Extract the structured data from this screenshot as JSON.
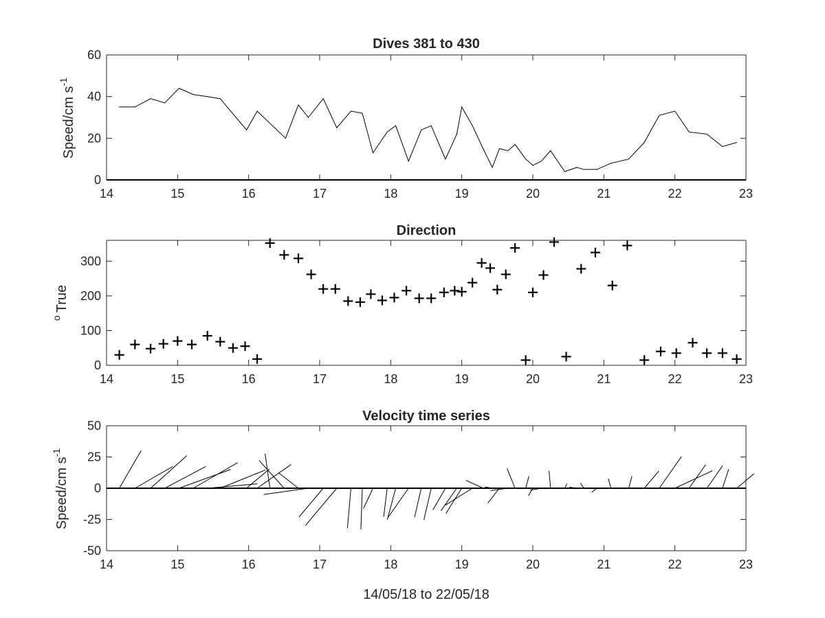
{
  "chart_data": [
    {
      "type": "line",
      "title": "Dives 381 to 430",
      "ylabel": "Speed/cm s",
      "ylabel_sup": "-1",
      "xlim": [
        14,
        23
      ],
      "ylim": [
        0,
        60
      ],
      "xticks": [
        14,
        15,
        16,
        17,
        18,
        19,
        20,
        21,
        22,
        23
      ],
      "yticks": [
        0,
        20,
        40,
        60
      ],
      "grid": false,
      "x": [
        14.18,
        14.4,
        14.62,
        14.82,
        15.02,
        15.22,
        15.42,
        15.6,
        15.97,
        16.12,
        16.52,
        16.7,
        16.84,
        17.05,
        17.24,
        17.44,
        17.6,
        17.75,
        17.95,
        18.07,
        18.25,
        18.43,
        18.57,
        18.77,
        18.93,
        19.0,
        19.15,
        19.3,
        19.43,
        19.53,
        19.65,
        19.75,
        19.9,
        20.0,
        20.12,
        20.25,
        20.45,
        20.62,
        20.72,
        20.9,
        21.1,
        21.35,
        21.57,
        21.78,
        22.0,
        22.2,
        22.45,
        22.67,
        22.87
      ],
      "values": [
        35,
        35,
        39,
        37,
        44,
        41,
        40,
        39,
        24,
        33,
        20,
        36,
        30,
        39,
        25,
        33,
        32,
        13,
        23,
        26,
        9,
        24,
        26,
        10,
        22,
        35,
        26,
        15,
        6,
        15,
        14,
        17,
        10,
        7,
        9,
        14,
        4,
        6,
        5,
        5,
        8,
        10,
        18,
        31,
        33,
        23,
        22,
        16,
        18
      ]
    },
    {
      "type": "scatter",
      "title": "Direction",
      "ylabel": "True",
      "ylabel_sup": "o",
      "xlim": [
        14,
        23
      ],
      "ylim": [
        0,
        360
      ],
      "xticks": [
        14,
        15,
        16,
        17,
        18,
        19,
        20,
        21,
        22,
        23
      ],
      "yticks": [
        0,
        100,
        200,
        300
      ],
      "grid": false,
      "x": [
        14.18,
        14.4,
        14.62,
        14.8,
        15.0,
        15.2,
        15.42,
        15.6,
        15.78,
        15.95,
        16.12,
        16.3,
        16.5,
        16.7,
        16.88,
        17.05,
        17.22,
        17.4,
        17.57,
        17.72,
        17.88,
        18.05,
        18.22,
        18.4,
        18.57,
        18.75,
        18.9,
        19.0,
        19.15,
        19.28,
        19.4,
        19.5,
        19.62,
        19.75,
        19.9,
        20.0,
        20.15,
        20.3,
        20.47,
        20.68,
        20.88,
        21.12,
        21.33,
        21.57,
        21.8,
        22.02,
        22.25,
        22.45,
        22.67,
        22.87
      ],
      "values": [
        30,
        60,
        48,
        62,
        70,
        60,
        85,
        68,
        50,
        55,
        18,
        352,
        318,
        308,
        262,
        220,
        220,
        185,
        182,
        205,
        187,
        195,
        215,
        193,
        193,
        210,
        215,
        212,
        238,
        295,
        280,
        218,
        262,
        338,
        15,
        210,
        260,
        355,
        25,
        278,
        325,
        230,
        345,
        15,
        40,
        35,
        65,
        35,
        35,
        18
      ]
    },
    {
      "type": "stick",
      "title": "Velocity time series",
      "ylabel": "Speed/cm s",
      "ylabel_sup": "-1",
      "xlabel": "14/05/18 to 22/05/18",
      "xlim": [
        14,
        23
      ],
      "ylim": [
        -50,
        50
      ],
      "xticks": [
        14,
        15,
        16,
        17,
        18,
        19,
        20,
        21,
        22,
        23
      ],
      "yticks": [
        -50,
        -25,
        0,
        25,
        50
      ],
      "grid": false,
      "x": [
        14.18,
        14.4,
        14.62,
        14.82,
        15.02,
        15.22,
        15.42,
        15.6,
        15.97,
        16.12,
        16.3,
        16.5,
        16.7,
        16.84,
        17.05,
        17.24,
        17.44,
        17.6,
        17.75,
        17.95,
        18.07,
        18.25,
        18.43,
        18.57,
        18.77,
        18.93,
        19.0,
        19.15,
        19.3,
        19.43,
        19.53,
        19.65,
        19.75,
        19.9,
        20.0,
        20.12,
        20.25,
        20.45,
        20.62,
        20.72,
        20.9,
        21.1,
        21.35,
        21.57,
        21.78,
        22.0,
        22.2,
        22.45,
        22.67,
        22.87
      ],
      "directions": [
        30,
        60,
        48,
        62,
        70,
        60,
        85,
        68,
        50,
        55,
        352,
        318,
        308,
        262,
        220,
        220,
        185,
        182,
        205,
        187,
        195,
        215,
        193,
        193,
        210,
        215,
        212,
        238,
        295,
        280,
        218,
        262,
        338,
        15,
        210,
        260,
        355,
        25,
        278,
        325,
        230,
        345,
        15,
        40,
        35,
        65,
        35,
        35,
        18,
        50
      ],
      "speeds": [
        35,
        35,
        39,
        37,
        44,
        41,
        40,
        39,
        24,
        33,
        28,
        30,
        20,
        36,
        30,
        39,
        32,
        33,
        18,
        23,
        26,
        28,
        24,
        26,
        20,
        22,
        24,
        26,
        15,
        6,
        15,
        14,
        17,
        10,
        7,
        9,
        14,
        4,
        6,
        5,
        5,
        8,
        10,
        18,
        31,
        33,
        23,
        22,
        16,
        18
      ]
    }
  ]
}
